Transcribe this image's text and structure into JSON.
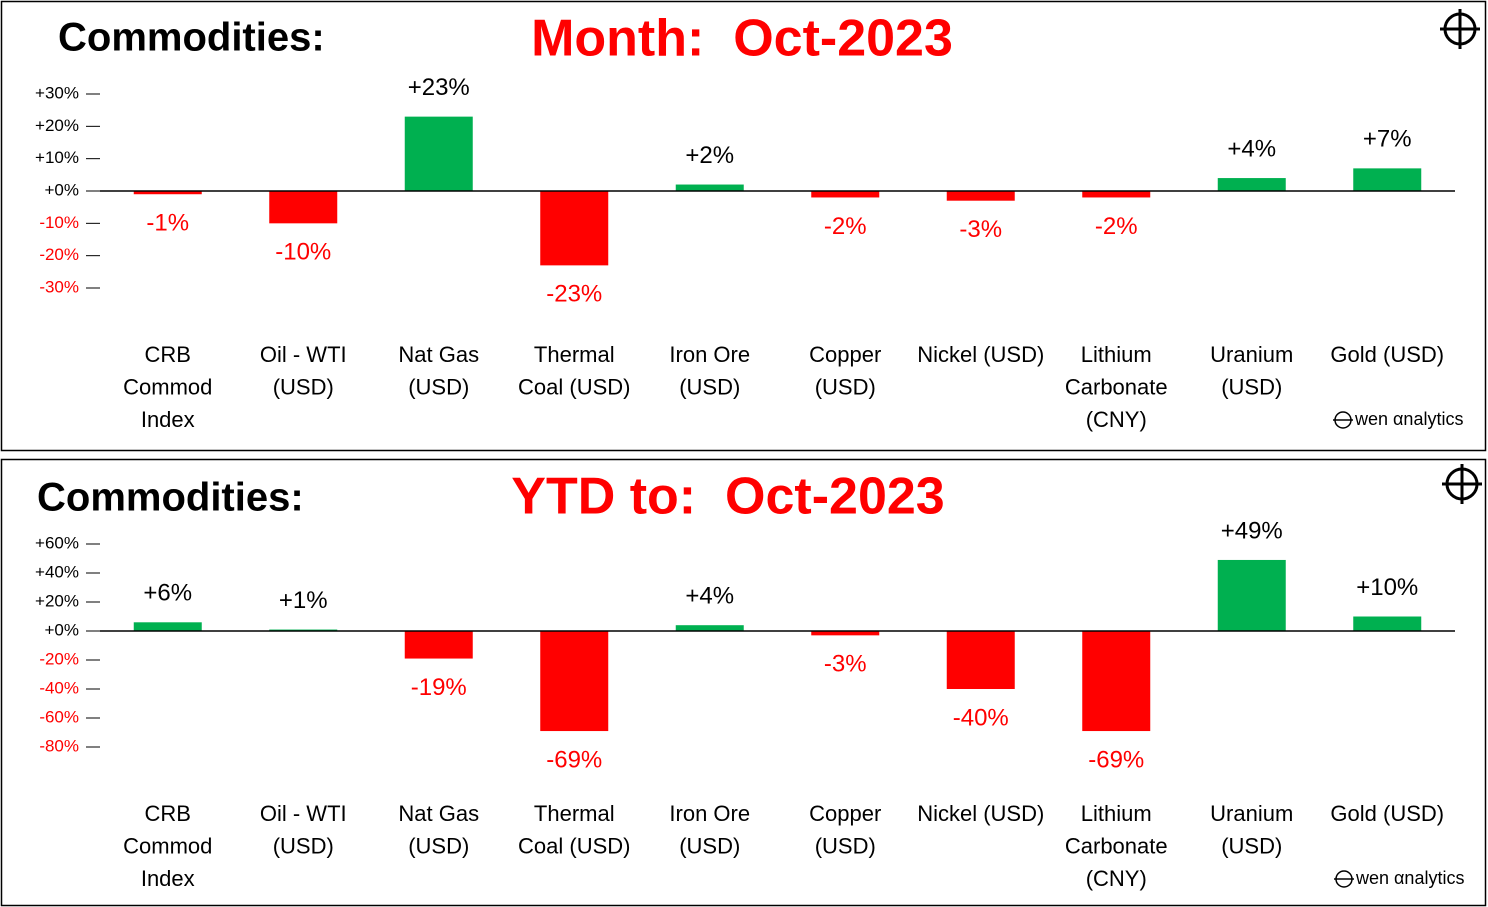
{
  "chart_data": [
    {
      "type": "bar",
      "title": "Commodities:",
      "subtitle": "Month:  Oct-2023",
      "categories": [
        [
          "CRB",
          "Commod",
          "Index"
        ],
        [
          "Oil - WTI",
          "(USD)"
        ],
        [
          "Nat Gas",
          "(USD)"
        ],
        [
          "Thermal",
          "Coal (USD)"
        ],
        [
          "Iron Ore",
          "(USD)"
        ],
        [
          "Copper",
          "(USD)"
        ],
        [
          "Nickel (USD)"
        ],
        [
          "Lithium",
          "Carbonate",
          "(CNY)"
        ],
        [
          "Uranium",
          "(USD)"
        ],
        [
          "Gold (USD)"
        ]
      ],
      "values": [
        -1,
        -10,
        23,
        -23,
        2,
        -2,
        -3,
        -2,
        4,
        7
      ],
      "value_labels": [
        "-1%",
        "-10%",
        "+23%",
        "-23%",
        "+2%",
        "-2%",
        "-3%",
        "-2%",
        "+4%",
        "+7%"
      ],
      "ylim": [
        -30,
        30
      ],
      "yticks": [
        {
          "value": 30,
          "label": "+30%"
        },
        {
          "value": 20,
          "label": "+20%"
        },
        {
          "value": 10,
          "label": "+10%"
        },
        {
          "value": 0,
          "label": "+0%"
        },
        {
          "value": -10,
          "label": "-10%"
        },
        {
          "value": -20,
          "label": "-20%"
        },
        {
          "value": -30,
          "label": "-30%"
        }
      ],
      "colors": {
        "positive": "#00b050",
        "negative": "#ff0000"
      },
      "watermark": "wen αnalytics"
    },
    {
      "type": "bar",
      "title": "Commodities:",
      "subtitle": "YTD to:  Oct-2023",
      "categories": [
        [
          "CRB",
          "Commod",
          "Index"
        ],
        [
          "Oil - WTI",
          "(USD)"
        ],
        [
          "Nat Gas",
          "(USD)"
        ],
        [
          "Thermal",
          "Coal (USD)"
        ],
        [
          "Iron Ore",
          "(USD)"
        ],
        [
          "Copper",
          "(USD)"
        ],
        [
          "Nickel (USD)"
        ],
        [
          "Lithium",
          "Carbonate",
          "(CNY)"
        ],
        [
          "Uranium",
          "(USD)"
        ],
        [
          "Gold (USD)"
        ]
      ],
      "values": [
        6,
        1,
        -19,
        -69,
        4,
        -3,
        -40,
        -69,
        49,
        10
      ],
      "value_labels": [
        "+6%",
        "+1%",
        "-19%",
        "-69%",
        "+4%",
        "-3%",
        "-40%",
        "-69%",
        "+49%",
        "+10%"
      ],
      "ylim": [
        -80,
        60
      ],
      "yticks": [
        {
          "value": 60,
          "label": "+60%"
        },
        {
          "value": 40,
          "label": "+40%"
        },
        {
          "value": 20,
          "label": "+20%"
        },
        {
          "value": 0,
          "label": "+0%"
        },
        {
          "value": -20,
          "label": "-20%"
        },
        {
          "value": -40,
          "label": "-40%"
        },
        {
          "value": -60,
          "label": "-60%"
        },
        {
          "value": -80,
          "label": "-80%"
        }
      ],
      "colors": {
        "positive": "#00b050",
        "negative": "#ff0000"
      },
      "watermark": "wen αnalytics"
    }
  ]
}
